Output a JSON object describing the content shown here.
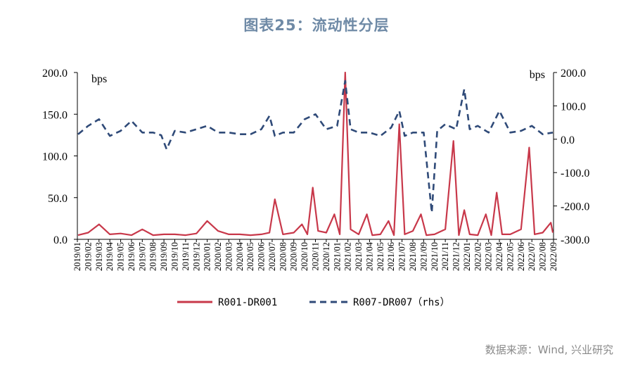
{
  "title": "图表25：流动性分层",
  "source": "数据来源：Wind, 兴业研究",
  "colors": {
    "title": "#6f8aa6",
    "series1": "#c8384a",
    "series2": "#2f4a78"
  },
  "chart_data": {
    "type": "line",
    "left_unit": "bps",
    "right_unit": "bps",
    "left_axis": {
      "min": 0,
      "max": 200,
      "ticks": [
        "0.0",
        "50.0",
        "100.0",
        "150.0",
        "200.0"
      ]
    },
    "right_axis": {
      "min": -300,
      "max": 200,
      "ticks": [
        "-300.0",
        "-200.0",
        "-100.0",
        "0.0",
        "100.0",
        "200.0"
      ]
    },
    "x_ticks": [
      "2019/01",
      "2019/02",
      "2019/03",
      "2019/04",
      "2019/05",
      "2019/06",
      "2019/07",
      "2019/08",
      "2019/09",
      "2019/10",
      "2019/11",
      "2019/12",
      "2020/01",
      "2020/02",
      "2020/03",
      "2020/04",
      "2020/05",
      "2020/06",
      "2020/07",
      "2020/08",
      "2020/09",
      "2020/10",
      "2020/11",
      "2020/12",
      "2021/01",
      "2021/02",
      "2021/03",
      "2021/04",
      "2021/05",
      "2021/06",
      "2021/07",
      "2021/08",
      "2021/09",
      "2021/10",
      "2021/11",
      "2021/12",
      "2022/01",
      "2022/02",
      "2022/03",
      "2022/04",
      "2022/05",
      "2022/06",
      "2022/07",
      "2022/08",
      "2022/09"
    ],
    "legend_position": "bottom",
    "series": [
      {
        "name": "R001-DR001",
        "axis": "left",
        "style": "solid",
        "x": [
          "2019/01",
          "2019/02",
          "2019/03",
          "2019/04",
          "2019/05",
          "2019/06",
          "2019/07",
          "2019/08",
          "2019/09",
          "2019/10",
          "2019/11",
          "2019/12",
          "2020/01",
          "2020/02",
          "2020/03",
          "2020/04",
          "2020/05",
          "2020/06",
          "2020/07",
          "2020/07",
          "2020/08",
          "2020/09",
          "2020/10",
          "2020/10",
          "2020/11",
          "2020/11",
          "2020/12",
          "2021/01",
          "2021/01",
          "2021/02",
          "2021/02",
          "2021/03",
          "2021/04",
          "2021/04",
          "2021/05",
          "2021/06",
          "2021/06",
          "2021/07",
          "2021/07",
          "2021/08",
          "2021/09",
          "2021/09",
          "2021/10",
          "2021/11",
          "2021/12",
          "2021/12",
          "2022/01",
          "2022/01",
          "2022/02",
          "2022/03",
          "2022/03",
          "2022/04",
          "2022/04",
          "2022/05",
          "2022/06",
          "2022/07",
          "2022/07",
          "2022/08",
          "2022/09",
          "2022/09"
        ],
        "values": [
          5,
          8,
          18,
          6,
          7,
          5,
          12,
          5,
          6,
          6,
          5,
          7,
          22,
          10,
          6,
          6,
          5,
          6,
          8,
          48,
          6,
          8,
          18,
          6,
          62,
          10,
          8,
          30,
          6,
          200,
          12,
          6,
          30,
          5,
          6,
          22,
          5,
          138,
          6,
          10,
          30,
          5,
          6,
          12,
          118,
          5,
          35,
          6,
          5,
          30,
          5,
          56,
          6,
          6,
          12,
          110,
          6,
          8,
          20,
          8
        ]
      },
      {
        "name": "R007-DR007（rhs）",
        "axis": "right",
        "style": "dashed",
        "x": [
          "2019/01",
          "2019/02",
          "2019/03",
          "2019/04",
          "2019/05",
          "2019/06",
          "2019/07",
          "2019/08",
          "2019/09",
          "2019/09",
          "2019/10",
          "2019/11",
          "2019/12",
          "2020/01",
          "2020/02",
          "2020/03",
          "2020/04",
          "2020/05",
          "2020/06",
          "2020/07",
          "2020/07",
          "2020/08",
          "2020/09",
          "2020/10",
          "2020/11",
          "2020/12",
          "2021/01",
          "2021/02",
          "2021/02",
          "2021/03",
          "2021/04",
          "2021/05",
          "2021/06",
          "2021/07",
          "2021/07",
          "2021/08",
          "2021/09",
          "2021/10",
          "2021/10",
          "2021/11",
          "2021/12",
          "2022/01",
          "2022/01",
          "2022/02",
          "2022/03",
          "2022/04",
          "2022/05",
          "2022/06",
          "2022/07",
          "2022/08",
          "2022/09"
        ],
        "values": [
          15,
          40,
          60,
          10,
          25,
          55,
          20,
          20,
          12,
          -30,
          25,
          20,
          30,
          40,
          20,
          20,
          15,
          15,
          30,
          70,
          10,
          20,
          20,
          60,
          75,
          30,
          40,
          175,
          30,
          20,
          20,
          10,
          35,
          85,
          10,
          20,
          20,
          -220,
          25,
          45,
          30,
          150,
          30,
          40,
          20,
          85,
          20,
          25,
          40,
          15,
          20
        ]
      }
    ]
  }
}
